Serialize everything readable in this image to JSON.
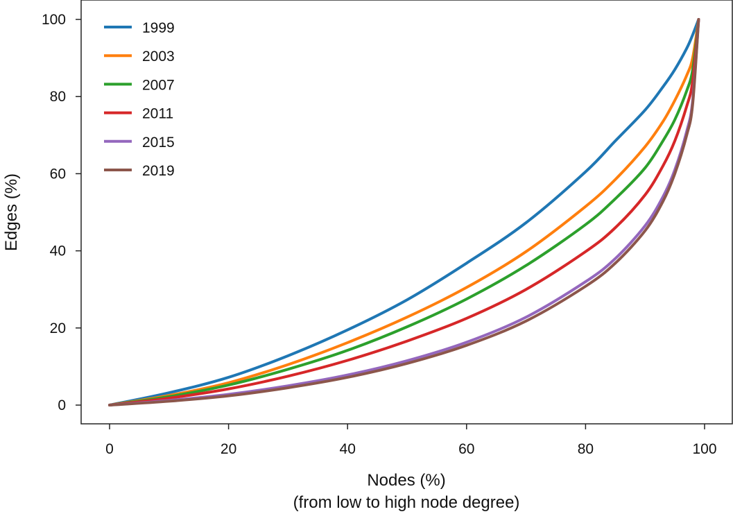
{
  "chart_data": {
    "type": "line",
    "xlabel": "Nodes (%)",
    "xlabel_sub": "(from low to high node degree)",
    "ylabel": "Edges (%)",
    "xlim": [
      0,
      100
    ],
    "ylim": [
      0,
      100
    ],
    "x_ticks": [
      "0",
      "20",
      "40",
      "60",
      "80",
      "100"
    ],
    "y_ticks": [
      "0",
      "20",
      "40",
      "60",
      "80",
      "100"
    ],
    "grid": false,
    "legend_position": "top-left",
    "x": [
      0,
      10,
      20,
      30,
      40,
      50,
      60,
      70,
      80,
      85,
      90,
      93,
      95,
      97,
      98,
      99
    ],
    "series": [
      {
        "name": "1999",
        "color": "#1f77b4",
        "values": [
          0,
          3.2,
          7.2,
          12.8,
          19.5,
          27.3,
          36.8,
          47.3,
          60.5,
          68.5,
          76.5,
          82.5,
          87,
          92.5,
          96,
          100
        ]
      },
      {
        "name": "2003",
        "color": "#ff7f0e",
        "values": [
          0,
          2.5,
          5.8,
          10.5,
          16.2,
          22.8,
          30.5,
          39.8,
          51.5,
          58.5,
          67,
          73.5,
          79,
          85.5,
          90,
          100
        ]
      },
      {
        "name": "2007",
        "color": "#2ca02c",
        "values": [
          0,
          2.2,
          5.2,
          9.3,
          14.2,
          20.3,
          27.5,
          36.2,
          46.8,
          53.5,
          61.5,
          68.5,
          74,
          81.5,
          87,
          100
        ]
      },
      {
        "name": "2011",
        "color": "#d62728",
        "values": [
          0,
          1.8,
          4.2,
          7.5,
          11.6,
          16.6,
          22.5,
          30,
          39.8,
          46,
          54.5,
          62,
          68.5,
          77.5,
          84,
          100
        ]
      },
      {
        "name": "2015",
        "color": "#9467bd",
        "values": [
          0,
          1.2,
          2.8,
          5.0,
          7.8,
          11.5,
          16.3,
          22.8,
          32.0,
          38.0,
          46.5,
          54.0,
          61.0,
          71.0,
          79.0,
          100
        ]
      },
      {
        "name": "2019",
        "color": "#8c564b",
        "values": [
          0,
          1.0,
          2.4,
          4.5,
          7.2,
          10.8,
          15.5,
          21.8,
          30.8,
          36.8,
          45.2,
          52.8,
          60.0,
          70.0,
          78.0,
          100
        ]
      }
    ]
  }
}
